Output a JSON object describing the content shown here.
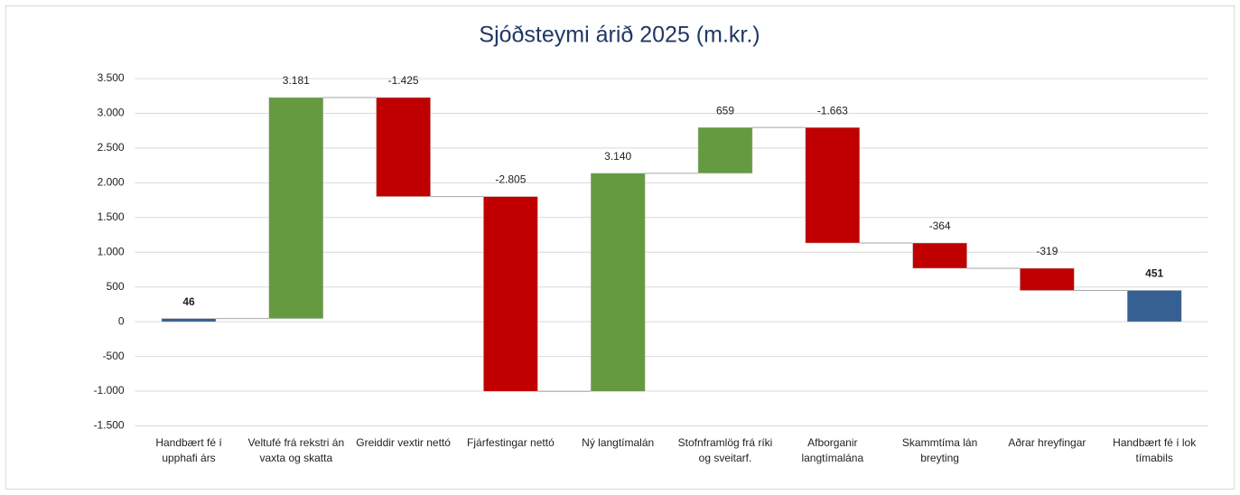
{
  "chart_data": {
    "type": "waterfall",
    "title": "Sjóðsteymi árið 2025 (m.kr.)",
    "categories": [
      "Handbært fé í upphafi árs",
      "Veltufé frá rekstri án vaxta og skatta",
      "Greiddir vextir nettó",
      "Fjárfestingar nettó",
      "Ný langtímalán",
      "Stofnframlög frá ríki og sveitarf.",
      "Afborganir langtímalána",
      "Skammtíma lán breyting",
      "Aðrar hreyfingar",
      "Handbært fé í lok tímabils"
    ],
    "values": [
      46,
      3181,
      -1425,
      -2805,
      3140,
      659,
      -1663,
      -364,
      -319,
      451
    ],
    "value_labels": [
      "46",
      "3.181",
      "-1.425",
      "-2.805",
      "3.140",
      "659",
      "-1.663",
      "-364",
      "-319",
      "451"
    ],
    "totals": [
      0,
      9
    ],
    "colors": {
      "total": "#376092",
      "increase": "#659a41",
      "decrease": "#c00000"
    },
    "ylim": [
      -1500,
      3500
    ],
    "yticks": [
      {
        "value": -1500,
        "label": "-1.500"
      },
      {
        "value": -1000,
        "label": "-1.000"
      },
      -500,
      0,
      500,
      {
        "value": 1000,
        "label": "1.000"
      },
      {
        "value": 1500,
        "label": "1.500"
      },
      {
        "value": 2000,
        "label": "2.000"
      },
      {
        "value": 2500,
        "label": "2.500"
      },
      {
        "value": 3000,
        "label": "3.000"
      },
      {
        "value": 3500,
        "label": "3.500"
      }
    ],
    "grid": true
  }
}
